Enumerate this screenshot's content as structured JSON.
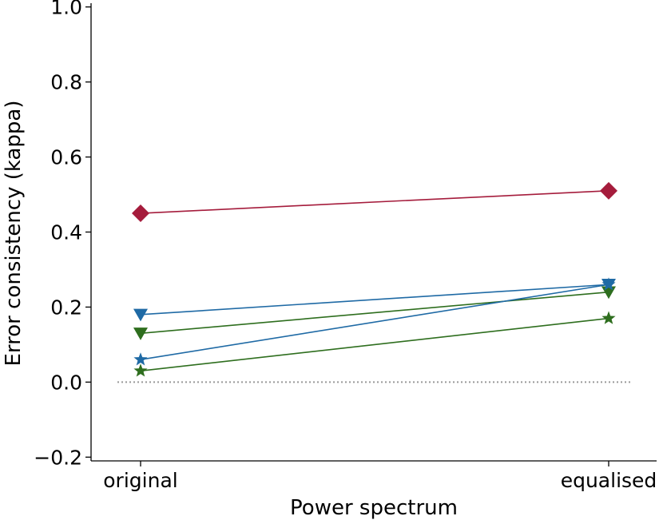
{
  "chart_data": {
    "type": "line",
    "title": "",
    "xlabel": "Power spectrum",
    "ylabel": "Error consistency (kappa)",
    "categories": [
      "original",
      "equalised"
    ],
    "ylim": [
      -0.21,
      1.01
    ],
    "yticks": [
      -0.2,
      0.0,
      0.2,
      0.4,
      0.6,
      0.8,
      1.0
    ],
    "ytick_labels": [
      "−0.2",
      "0.0",
      "0.2",
      "0.4",
      "0.6",
      "0.8",
      "1.0"
    ],
    "grid": false,
    "legend": "none",
    "reference_line": {
      "y": 0.0,
      "style": "dotted",
      "color": "#999999"
    },
    "series": [
      {
        "values": [
          0.45,
          0.51
        ],
        "color": "#a51c3c",
        "marker": "diamond"
      },
      {
        "values": [
          0.18,
          0.26
        ],
        "color": "#1f6aa5",
        "marker": "triangle-down"
      },
      {
        "values": [
          0.13,
          0.24
        ],
        "color": "#2e6e1e",
        "marker": "triangle-down"
      },
      {
        "values": [
          0.06,
          0.26
        ],
        "color": "#1f6aa5",
        "marker": "star"
      },
      {
        "values": [
          0.03,
          0.17
        ],
        "color": "#2e6e1e",
        "marker": "star"
      }
    ]
  }
}
